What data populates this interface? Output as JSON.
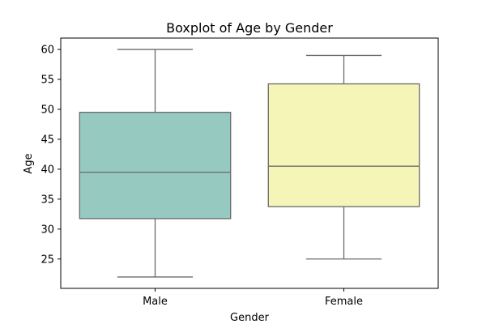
{
  "chart_data": {
    "type": "boxplot",
    "title": "Boxplot of Age by Gender",
    "xlabel": "Gender",
    "ylabel": "Age",
    "ylim": [
      20.1,
      61.9
    ],
    "yticks": [
      25,
      30,
      35,
      40,
      45,
      50,
      55,
      60
    ],
    "grid": false,
    "legend": "none",
    "categories": [
      "Male",
      "Female"
    ],
    "boxes": [
      {
        "category": "Male",
        "whisker_low": 22,
        "q1": 31.75,
        "median": 39.5,
        "q3": 49.5,
        "whisker_high": 60,
        "color": "#96c9c0"
      },
      {
        "category": "Female",
        "whisker_low": 25,
        "q1": 33.75,
        "median": 40.5,
        "q3": 54.25,
        "whisker_high": 59,
        "color": "#f5f5b8"
      }
    ],
    "line_color": "#6b6b6b"
  }
}
